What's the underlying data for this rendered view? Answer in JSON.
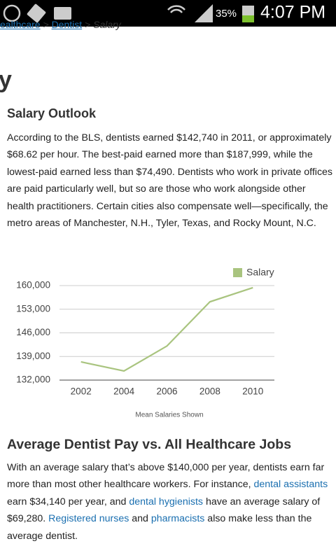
{
  "status_bar": {
    "battery": "35%",
    "time": "4:07 PM"
  },
  "breadcrumb": [
    "ealthcare",
    ">",
    "Dentist",
    ">",
    "Salary"
  ],
  "page_title": "y",
  "section1": {
    "heading": "Salary Outlook",
    "paragraph": [
      {
        "text": "According to the BLS, dentists earned $142,740 in 2011, or approximately $68.62 per hour. The best-paid earned more than $187,999, while the lowest-paid earned less than $74,490. Dentists who work in private offices are paid particularly well, but so are those who work alongside other health practitioners. Certain cities also compensate well—specifically, the metro areas of Manchester, N.H., Tyler, Texas, and Rocky Mount, N.C."
      }
    ]
  },
  "chart_data": {
    "type": "line",
    "caption": "Mean Salaries Shown",
    "categories": [
      "2002",
      "2004",
      "2006",
      "2008",
      "2010"
    ],
    "series": [
      {
        "name": "Salary",
        "color": "#a9c47f",
        "values": [
          137400,
          134700,
          142100,
          155200,
          159400
        ]
      }
    ],
    "ylim": [
      132000,
      160000
    ],
    "yticks": [
      {
        "value": 132000,
        "label": "132,000"
      },
      {
        "value": 139000,
        "label": "139,000"
      },
      {
        "value": 146000,
        "label": "146,000"
      },
      {
        "value": 153000,
        "label": "153,000"
      },
      {
        "value": 160000,
        "label": "160,000"
      }
    ],
    "grid": true,
    "legend": "top-right"
  },
  "section2": {
    "heading": "Average Dentist Pay vs. All Healthcare Jobs",
    "paragraph": [
      {
        "text": "With an average salary that’s above $140,000 per year, dentists earn far more than most other healthcare workers. For instance, "
      },
      {
        "link": "dental assistants"
      },
      {
        "text": " earn $34,140 per year, and "
      },
      {
        "link": "dental hygienists"
      },
      {
        "text": " have an average salary of $69,280. "
      },
      {
        "link": "Registered nurses"
      },
      {
        "text": " and "
      },
      {
        "link": "pharmacists"
      },
      {
        "text": " also make less than the average dentist."
      }
    ]
  }
}
